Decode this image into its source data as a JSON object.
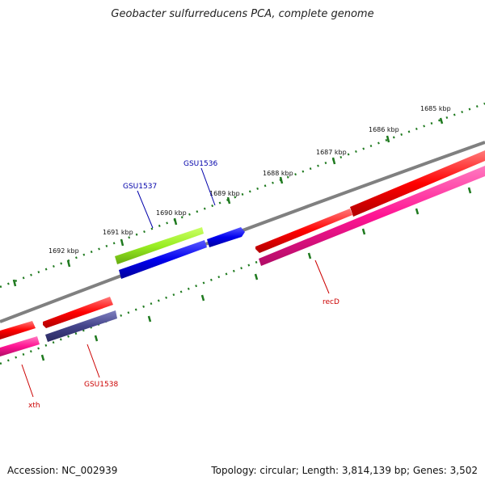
{
  "title": "Geobacter sulfurreducens PCA, complete genome",
  "footer": {
    "accession": "Accession: NC_002939",
    "stats": "Topology: circular; Length: 3,814,139 bp; Genes: 3,502"
  },
  "ruler_labels": [
    "1685 kbp",
    "1686 kbp",
    "1687 kbp",
    "1688 kbp",
    "1689 kbp",
    "1690 kbp",
    "1691 kbp",
    "1692 kbp"
  ],
  "gene_labels": [
    "GSU1536",
    "GSU1537",
    "GSU1538",
    "recD",
    "xth"
  ],
  "colors": {
    "tick": "#1f7a1f",
    "backbone": "#808080",
    "red": "#ff0000",
    "pink": "#ff1493",
    "blue": "#0000ee",
    "green": "#99ee22",
    "navy": "#44448a",
    "label_blue": "#0000aa",
    "label_red": "#cc0000"
  }
}
